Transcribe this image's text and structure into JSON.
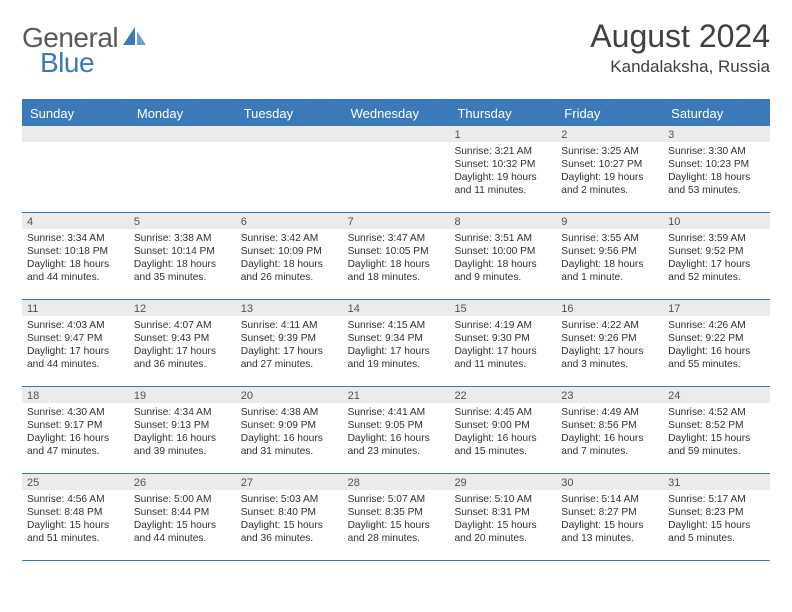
{
  "brand": {
    "part1": "General",
    "part2": "Blue"
  },
  "title": "August 2024",
  "location": "Kandalaksha, Russia",
  "colors": {
    "accent": "#3a7ab8",
    "head_bg": "#3a7ab8",
    "day_bg": "#ebebeb",
    "text": "#303030"
  },
  "dayNames": [
    "Sunday",
    "Monday",
    "Tuesday",
    "Wednesday",
    "Thursday",
    "Friday",
    "Saturday"
  ],
  "weeks": [
    [
      null,
      null,
      null,
      null,
      {
        "n": "1",
        "sr": "3:21 AM",
        "ss": "10:32 PM",
        "dl": "19 hours and 11 minutes."
      },
      {
        "n": "2",
        "sr": "3:25 AM",
        "ss": "10:27 PM",
        "dl": "19 hours and 2 minutes."
      },
      {
        "n": "3",
        "sr": "3:30 AM",
        "ss": "10:23 PM",
        "dl": "18 hours and 53 minutes."
      }
    ],
    [
      {
        "n": "4",
        "sr": "3:34 AM",
        "ss": "10:18 PM",
        "dl": "18 hours and 44 minutes."
      },
      {
        "n": "5",
        "sr": "3:38 AM",
        "ss": "10:14 PM",
        "dl": "18 hours and 35 minutes."
      },
      {
        "n": "6",
        "sr": "3:42 AM",
        "ss": "10:09 PM",
        "dl": "18 hours and 26 minutes."
      },
      {
        "n": "7",
        "sr": "3:47 AM",
        "ss": "10:05 PM",
        "dl": "18 hours and 18 minutes."
      },
      {
        "n": "8",
        "sr": "3:51 AM",
        "ss": "10:00 PM",
        "dl": "18 hours and 9 minutes."
      },
      {
        "n": "9",
        "sr": "3:55 AM",
        "ss": "9:56 PM",
        "dl": "18 hours and 1 minute."
      },
      {
        "n": "10",
        "sr": "3:59 AM",
        "ss": "9:52 PM",
        "dl": "17 hours and 52 minutes."
      }
    ],
    [
      {
        "n": "11",
        "sr": "4:03 AM",
        "ss": "9:47 PM",
        "dl": "17 hours and 44 minutes."
      },
      {
        "n": "12",
        "sr": "4:07 AM",
        "ss": "9:43 PM",
        "dl": "17 hours and 36 minutes."
      },
      {
        "n": "13",
        "sr": "4:11 AM",
        "ss": "9:39 PM",
        "dl": "17 hours and 27 minutes."
      },
      {
        "n": "14",
        "sr": "4:15 AM",
        "ss": "9:34 PM",
        "dl": "17 hours and 19 minutes."
      },
      {
        "n": "15",
        "sr": "4:19 AM",
        "ss": "9:30 PM",
        "dl": "17 hours and 11 minutes."
      },
      {
        "n": "16",
        "sr": "4:22 AM",
        "ss": "9:26 PM",
        "dl": "17 hours and 3 minutes."
      },
      {
        "n": "17",
        "sr": "4:26 AM",
        "ss": "9:22 PM",
        "dl": "16 hours and 55 minutes."
      }
    ],
    [
      {
        "n": "18",
        "sr": "4:30 AM",
        "ss": "9:17 PM",
        "dl": "16 hours and 47 minutes."
      },
      {
        "n": "19",
        "sr": "4:34 AM",
        "ss": "9:13 PM",
        "dl": "16 hours and 39 minutes."
      },
      {
        "n": "20",
        "sr": "4:38 AM",
        "ss": "9:09 PM",
        "dl": "16 hours and 31 minutes."
      },
      {
        "n": "21",
        "sr": "4:41 AM",
        "ss": "9:05 PM",
        "dl": "16 hours and 23 minutes."
      },
      {
        "n": "22",
        "sr": "4:45 AM",
        "ss": "9:00 PM",
        "dl": "16 hours and 15 minutes."
      },
      {
        "n": "23",
        "sr": "4:49 AM",
        "ss": "8:56 PM",
        "dl": "16 hours and 7 minutes."
      },
      {
        "n": "24",
        "sr": "4:52 AM",
        "ss": "8:52 PM",
        "dl": "15 hours and 59 minutes."
      }
    ],
    [
      {
        "n": "25",
        "sr": "4:56 AM",
        "ss": "8:48 PM",
        "dl": "15 hours and 51 minutes."
      },
      {
        "n": "26",
        "sr": "5:00 AM",
        "ss": "8:44 PM",
        "dl": "15 hours and 44 minutes."
      },
      {
        "n": "27",
        "sr": "5:03 AM",
        "ss": "8:40 PM",
        "dl": "15 hours and 36 minutes."
      },
      {
        "n": "28",
        "sr": "5:07 AM",
        "ss": "8:35 PM",
        "dl": "15 hours and 28 minutes."
      },
      {
        "n": "29",
        "sr": "5:10 AM",
        "ss": "8:31 PM",
        "dl": "15 hours and 20 minutes."
      },
      {
        "n": "30",
        "sr": "5:14 AM",
        "ss": "8:27 PM",
        "dl": "15 hours and 13 minutes."
      },
      {
        "n": "31",
        "sr": "5:17 AM",
        "ss": "8:23 PM",
        "dl": "15 hours and 5 minutes."
      }
    ]
  ],
  "labels": {
    "sunrise": "Sunrise: ",
    "sunset": "Sunset: ",
    "daylight": "Daylight: "
  }
}
